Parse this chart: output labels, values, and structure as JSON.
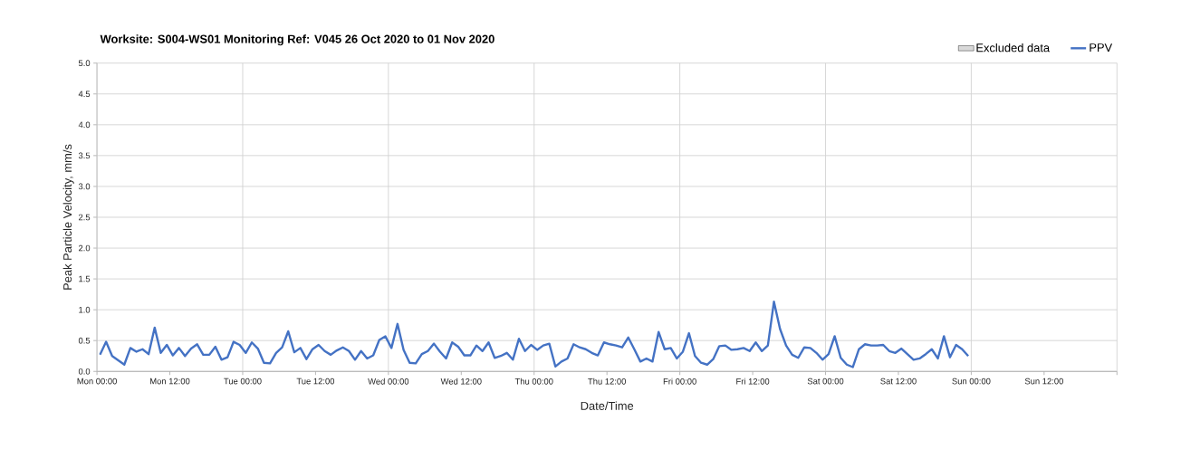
{
  "chart_data": {
    "type": "line",
    "title": "Worksite: S004-WS01    Monitoring Ref: V045     26 Oct 2020 to 01 Nov 2020",
    "xlabel": "Date/Time",
    "ylabel": "Peak Particle Velocity, mm/s",
    "xlim": [
      "2020-10-26T00:00",
      "2020-11-02T00:00"
    ],
    "ylim": [
      0,
      5
    ],
    "xticks": [
      {
        "value": "2020-10-26T00:00",
        "label": "Mon 00:00"
      },
      {
        "value": "2020-10-26T12:00",
        "label": "Mon 12:00"
      },
      {
        "value": "2020-10-27T00:00",
        "label": "Tue 00:00"
      },
      {
        "value": "2020-10-27T12:00",
        "label": "Tue 12:00"
      },
      {
        "value": "2020-10-28T00:00",
        "label": "Wed 00:00"
      },
      {
        "value": "2020-10-28T12:00",
        "label": "Wed 12:00"
      },
      {
        "value": "2020-10-29T00:00",
        "label": "Thu 00:00"
      },
      {
        "value": "2020-10-29T12:00",
        "label": "Thu 12:00"
      },
      {
        "value": "2020-10-30T00:00",
        "label": "Fri 00:00"
      },
      {
        "value": "2020-10-30T12:00",
        "label": "Fri 12:00"
      },
      {
        "value": "2020-10-31T00:00",
        "label": "Sat 00:00"
      },
      {
        "value": "2020-10-31T12:00",
        "label": "Sat 12:00"
      },
      {
        "value": "2020-11-01T00:00",
        "label": "Sun 00:00"
      },
      {
        "value": "2020-11-01T12:00",
        "label": "Sun 12:00"
      },
      {
        "value": "2020-11-02T00:00",
        "label": null
      }
    ],
    "yticks": [
      {
        "value": 0,
        "label": "0.0"
      },
      {
        "value": 0.5,
        "label": "0.5"
      },
      {
        "value": 1,
        "label": "1.0"
      },
      {
        "value": 1.5,
        "label": "1.5"
      },
      {
        "value": 2,
        "label": "2.0"
      },
      {
        "value": 2.5,
        "label": "2.5"
      },
      {
        "value": 3,
        "label": "3.0"
      },
      {
        "value": 3.5,
        "label": "3.5"
      },
      {
        "value": 4,
        "label": "4.0"
      },
      {
        "value": 4.5,
        "label": "4.5"
      },
      {
        "value": 5,
        "label": "5.0"
      }
    ],
    "grid": true,
    "legend": "top right",
    "x": [
      "2020-10-26T00:30",
      "2020-10-26T01:30",
      "2020-10-26T02:30",
      "2020-10-26T03:30",
      "2020-10-26T04:30",
      "2020-10-26T05:30",
      "2020-10-26T06:30",
      "2020-10-26T07:30",
      "2020-10-26T08:30",
      "2020-10-26T09:30",
      "2020-10-26T10:30",
      "2020-10-26T11:30",
      "2020-10-26T12:30",
      "2020-10-26T13:30",
      "2020-10-26T14:30",
      "2020-10-26T15:30",
      "2020-10-26T16:30",
      "2020-10-26T17:30",
      "2020-10-26T18:30",
      "2020-10-26T19:30",
      "2020-10-26T20:30",
      "2020-10-26T21:30",
      "2020-10-26T22:30",
      "2020-10-26T23:30",
      "2020-10-27T00:30",
      "2020-10-27T01:30",
      "2020-10-27T02:30",
      "2020-10-27T03:30",
      "2020-10-27T04:30",
      "2020-10-27T05:30",
      "2020-10-27T06:30",
      "2020-10-27T07:30",
      "2020-10-27T08:30",
      "2020-10-27T09:30",
      "2020-10-27T10:30",
      "2020-10-27T11:30",
      "2020-10-27T12:30",
      "2020-10-27T13:30",
      "2020-10-27T14:30",
      "2020-10-27T15:30",
      "2020-10-27T16:30",
      "2020-10-27T17:30",
      "2020-10-27T18:30",
      "2020-10-27T19:30",
      "2020-10-27T20:30",
      "2020-10-27T21:30",
      "2020-10-27T22:30",
      "2020-10-27T23:30",
      "2020-10-28T00:30",
      "2020-10-28T01:30",
      "2020-10-28T02:30",
      "2020-10-28T03:30",
      "2020-10-28T04:30",
      "2020-10-28T05:30",
      "2020-10-28T06:30",
      "2020-10-28T07:30",
      "2020-10-28T08:30",
      "2020-10-28T09:30",
      "2020-10-28T10:30",
      "2020-10-28T11:30",
      "2020-10-28T12:30",
      "2020-10-28T13:30",
      "2020-10-28T14:30",
      "2020-10-28T15:30",
      "2020-10-28T16:30",
      "2020-10-28T17:30",
      "2020-10-28T18:30",
      "2020-10-28T19:30",
      "2020-10-28T20:30",
      "2020-10-28T21:30",
      "2020-10-28T22:30",
      "2020-10-28T23:30",
      "2020-10-29T00:30",
      "2020-10-29T01:30",
      "2020-10-29T02:30",
      "2020-10-29T03:30",
      "2020-10-29T04:30",
      "2020-10-29T05:30",
      "2020-10-29T06:30",
      "2020-10-29T07:30",
      "2020-10-29T08:30",
      "2020-10-29T09:30",
      "2020-10-29T10:30",
      "2020-10-29T11:30",
      "2020-10-29T12:30",
      "2020-10-29T13:30",
      "2020-10-29T14:30",
      "2020-10-29T15:30",
      "2020-10-29T16:30",
      "2020-10-29T17:30",
      "2020-10-29T18:30",
      "2020-10-29T19:30",
      "2020-10-29T20:30",
      "2020-10-29T21:30",
      "2020-10-29T22:30",
      "2020-10-29T23:30",
      "2020-10-30T00:30",
      "2020-10-30T01:30",
      "2020-10-30T02:30",
      "2020-10-30T03:30",
      "2020-10-30T04:30",
      "2020-10-30T05:30",
      "2020-10-30T06:30",
      "2020-10-30T07:30",
      "2020-10-30T08:30",
      "2020-10-30T09:30",
      "2020-10-30T10:30",
      "2020-10-30T11:30",
      "2020-10-30T12:30",
      "2020-10-30T13:30",
      "2020-10-30T14:30",
      "2020-10-30T15:30",
      "2020-10-30T16:30",
      "2020-10-30T17:30",
      "2020-10-30T18:30",
      "2020-10-30T19:30",
      "2020-10-30T20:30",
      "2020-10-30T21:30",
      "2020-10-30T22:30",
      "2020-10-30T23:30",
      "2020-10-31T00:30",
      "2020-10-31T01:30",
      "2020-10-31T02:30",
      "2020-10-31T03:30",
      "2020-10-31T04:30",
      "2020-10-31T05:30",
      "2020-10-31T06:30",
      "2020-10-31T07:30",
      "2020-10-31T08:30",
      "2020-10-31T09:30",
      "2020-10-31T10:30",
      "2020-10-31T11:30",
      "2020-10-31T12:30",
      "2020-10-31T13:30",
      "2020-10-31T14:30",
      "2020-10-31T15:30",
      "2020-10-31T16:30",
      "2020-10-31T17:30",
      "2020-10-31T18:30",
      "2020-10-31T19:30",
      "2020-10-31T20:30",
      "2020-10-31T21:30",
      "2020-10-31T22:30",
      "2020-10-31T23:30"
    ],
    "series": [
      {
        "name": "Excluded data",
        "type": "area",
        "color": "#d9d9d9",
        "values": [
          null,
          null,
          null,
          null,
          null,
          null,
          null,
          null,
          null,
          null,
          null,
          null,
          null,
          null,
          null,
          null,
          null,
          null,
          null,
          null,
          null,
          null,
          null,
          null,
          null,
          null,
          null,
          null,
          null,
          null,
          null,
          null,
          null,
          null,
          null,
          null,
          null,
          null,
          null,
          null,
          null,
          null,
          null,
          null,
          null,
          null,
          null,
          null,
          null,
          null,
          null,
          null,
          null,
          null,
          null,
          null,
          null,
          null,
          null,
          null,
          null,
          null,
          null,
          null,
          null,
          null,
          null,
          null,
          null,
          null,
          null,
          null,
          null,
          null,
          null,
          null,
          null,
          null,
          null,
          null,
          null,
          null,
          null,
          null,
          null,
          null,
          null,
          null,
          null,
          null,
          null,
          null,
          null,
          null,
          null,
          null,
          null,
          null,
          null,
          null,
          null,
          null,
          null,
          null,
          null,
          null,
          null,
          null,
          null,
          null,
          null,
          null,
          null,
          null,
          null,
          null,
          null,
          null,
          null,
          null,
          null,
          null,
          null,
          null,
          null,
          null,
          null,
          null,
          null,
          null,
          null,
          null,
          null,
          null,
          null,
          null,
          null,
          null,
          null,
          null,
          null,
          null,
          null,
          null
        ]
      },
      {
        "name": "PPV",
        "color": "#4472c4",
        "values": [
          0.27,
          0.48,
          0.25,
          0.18,
          0.11,
          0.38,
          0.32,
          0.36,
          0.28,
          0.71,
          0.3,
          0.43,
          0.26,
          0.38,
          0.25,
          0.37,
          0.44,
          0.27,
          0.27,
          0.4,
          0.19,
          0.23,
          0.48,
          0.43,
          0.3,
          0.47,
          0.37,
          0.14,
          0.13,
          0.3,
          0.39,
          0.65,
          0.31,
          0.38,
          0.2,
          0.36,
          0.43,
          0.33,
          0.27,
          0.34,
          0.39,
          0.33,
          0.19,
          0.33,
          0.21,
          0.26,
          0.51,
          0.57,
          0.38,
          0.77,
          0.35,
          0.14,
          0.13,
          0.28,
          0.33,
          0.45,
          0.32,
          0.21,
          0.47,
          0.4,
          0.26,
          0.26,
          0.42,
          0.33,
          0.47,
          0.22,
          0.25,
          0.3,
          0.19,
          0.53,
          0.33,
          0.43,
          0.35,
          0.42,
          0.45,
          0.08,
          0.16,
          0.21,
          0.44,
          0.39,
          0.36,
          0.3,
          0.26,
          0.47,
          0.44,
          0.42,
          0.39,
          0.55,
          0.36,
          0.16,
          0.21,
          0.16,
          0.64,
          0.36,
          0.38,
          0.21,
          0.32,
          0.62,
          0.25,
          0.14,
          0.11,
          0.2,
          0.41,
          0.42,
          0.35,
          0.36,
          0.38,
          0.33,
          0.47,
          0.33,
          0.42,
          1.13,
          0.69,
          0.42,
          0.27,
          0.22,
          0.39,
          0.38,
          0.3,
          0.19,
          0.28,
          0.57,
          0.22,
          0.11,
          0.07,
          0.36,
          0.44,
          0.42,
          0.42,
          0.43,
          0.33,
          0.3,
          0.37,
          0.28,
          0.19,
          0.21,
          0.28,
          0.36,
          0.21,
          0.57,
          0.23,
          0.43,
          0.36,
          0.25
        ]
      }
    ]
  }
}
